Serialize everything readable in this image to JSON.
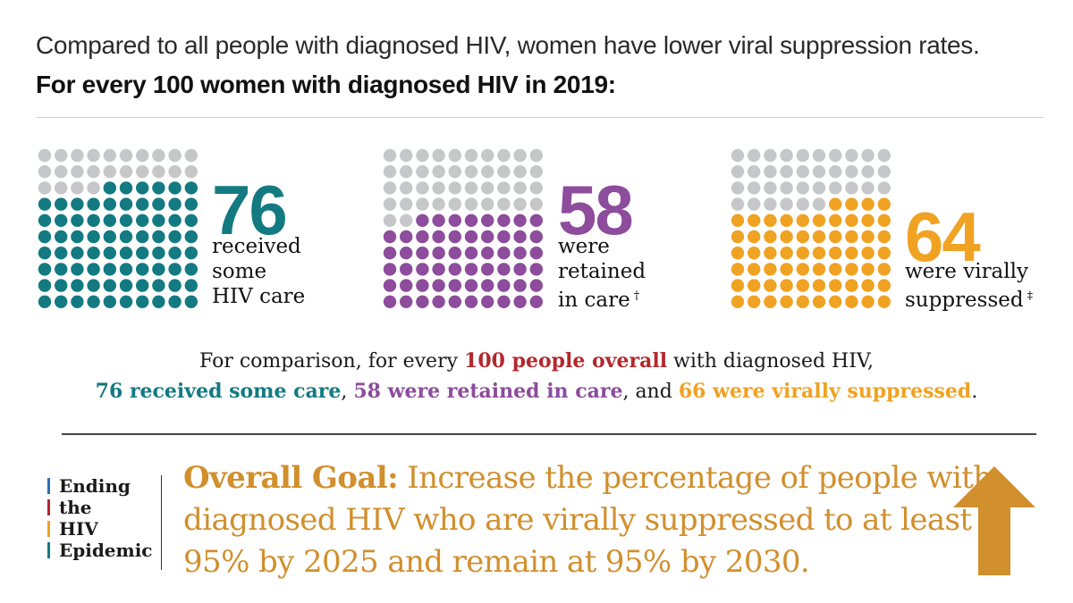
{
  "intro": "Compared to all people with diagnosed HIV, women have lower viral suppression rates.",
  "subhead": "For every 100 women with diagnosed HIV in 2019:",
  "colors": {
    "gray": "#c6c7c9",
    "teal": "#137a82",
    "purple": "#8d4c9c",
    "orange": "#f0a223",
    "red": "#b3282d",
    "gold": "#d18f2d",
    "blue": "#2a6fb5"
  },
  "panels": [
    {
      "value": 76,
      "number": "76",
      "lines": [
        "received",
        "some",
        "HIV care"
      ],
      "mark": "",
      "color": "#137a82"
    },
    {
      "value": 58,
      "number": "58",
      "lines": [
        "were",
        "retained",
        "in care"
      ],
      "mark": "†",
      "color": "#8d4c9c"
    },
    {
      "value": 64,
      "number": "64",
      "lines": [
        "were virally",
        "suppressed"
      ],
      "mark": "‡",
      "color": "#f0a223"
    }
  ],
  "chart_data": [
    {
      "type": "waffle",
      "total": 100,
      "title": "For every 100 women with diagnosed HIV in 2019:",
      "series": [
        {
          "name": "received some HIV care",
          "value": 76
        },
        {
          "name": "were retained in care",
          "value": 58
        },
        {
          "name": "were virally suppressed",
          "value": 64
        }
      ]
    }
  ],
  "comparison": {
    "line1_pre": "For comparison, for every ",
    "line1_em": "100 people overall",
    "line1_post": " with diagnosed HIV,",
    "care": "76 received some care",
    "sep1": ", ",
    "retained": "58 were retained in care",
    "sep2": ", and ",
    "suppressed": "66 were virally suppressed",
    "end": "."
  },
  "ehe": {
    "lines": [
      "Ending",
      "the",
      "HIV",
      "Epidemic"
    ],
    "bar_colors": [
      "#2a6fb5",
      "#b3282d",
      "#f0a223",
      "#137a82"
    ]
  },
  "goal": {
    "lead": "Overall Goal:",
    "line1": " Increase the percentage of people with",
    "line2": "diagnosed HIV who are virally suppressed to at least",
    "line3": "95% by 2025 and remain at 95% by 2030."
  },
  "icons": {
    "goal_arrow": "arrow-up-icon"
  }
}
